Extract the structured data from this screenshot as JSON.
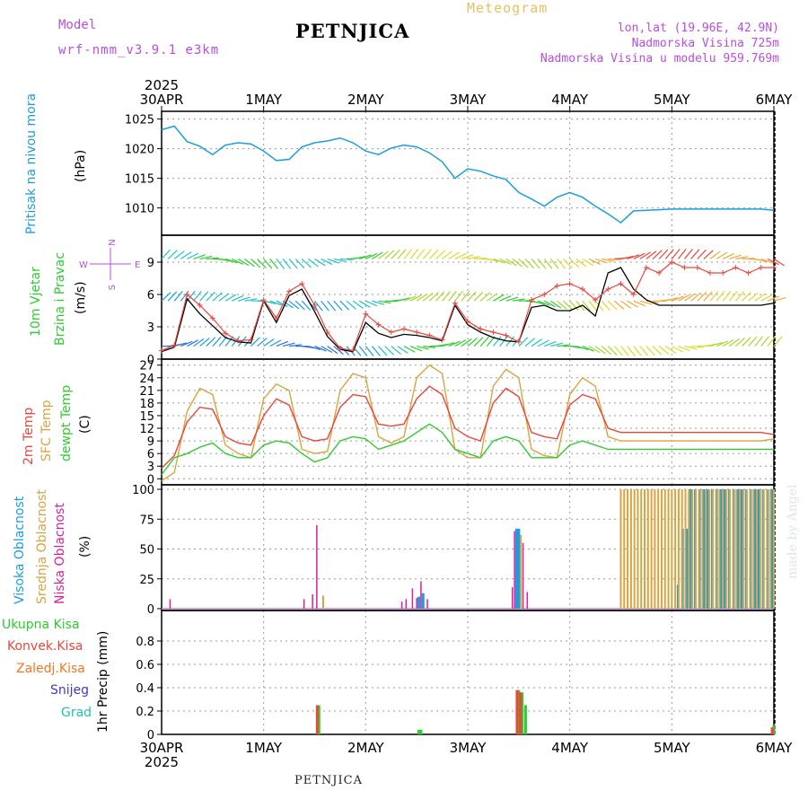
{
  "header": {
    "model_label": "Model",
    "model_name": "wrf-nmm_v3.9.1 e3km",
    "product": "Meteogram",
    "station": "PETNJICA",
    "lonlat": "lon,lat (19.96E, 42.9N)",
    "altitude": "Nadmorska Visina 725m",
    "model_altitude": "Nadmorska Visina u modelu 959.769m",
    "credit": "made by Angel",
    "footer_station": "PETNJICA"
  },
  "colors": {
    "pressure": "#1a9ee0",
    "temp2m": "#e8473c",
    "sfc_temp": "#d9a440",
    "dewpoint": "#2ecc2e",
    "visoka": "#1a9ee0",
    "srednja": "#d9a440",
    "niska": "#d6219c",
    "ukupna": "#2ecc2e",
    "konvek": "#e8473c",
    "zaledj": "#f07820",
    "snijeg": "#3b3bd9",
    "grad": "#1fc2b0",
    "purple": "#b84ee0"
  },
  "time_axis": {
    "year": "2025",
    "labels": [
      "30APR",
      "1MAY",
      "2MAY",
      "3MAY",
      "4MAY",
      "5MAY",
      "6MAY"
    ]
  },
  "compass": {
    "n": "N",
    "s": "S",
    "w": "W",
    "e": "E"
  },
  "chart_data": [
    {
      "type": "line",
      "name": "pressure",
      "title": "Pritisak na nivou mora",
      "ylabel": "(hPa)",
      "ylim": [
        1006,
        1026
      ],
      "yticks": [
        1010,
        1015,
        1020,
        1025
      ],
      "x_hours": [
        0,
        3,
        6,
        9,
        12,
        15,
        18,
        21,
        24,
        27,
        30,
        33,
        36,
        39,
        42,
        45,
        48,
        51,
        54,
        57,
        60,
        63,
        66,
        69,
        72,
        75,
        78,
        81,
        84,
        87,
        90,
        93,
        96,
        99,
        102,
        105,
        108,
        111,
        114,
        117,
        120,
        123,
        126,
        129,
        132,
        135,
        138,
        141,
        144
      ],
      "values": [
        1023.2,
        1023.8,
        1021.2,
        1020.4,
        1019.0,
        1020.6,
        1021.0,
        1020.8,
        1019.6,
        1018.0,
        1018.2,
        1020.3,
        1021.0,
        1021.3,
        1021.8,
        1021.0,
        1019.6,
        1019.0,
        1020.1,
        1020.6,
        1020.3,
        1019.3,
        1017.8,
        1015.0,
        1016.6,
        1016.2,
        1015.4,
        1014.8,
        1012.6,
        1011.5,
        1010.3,
        1011.8,
        1012.6,
        1011.8,
        1010.3,
        1009.0,
        1007.5,
        1009.5,
        1009.6,
        1009.7,
        1009.8,
        1009.8,
        1009.8,
        1009.8,
        1009.8,
        1009.8,
        1009.8,
        1009.8,
        1009.6
      ]
    },
    {
      "type": "line",
      "name": "wind",
      "title": "10m Vjetar Brzina i Pravac",
      "ylabel": "(m/s)",
      "ylim": [
        0,
        11.5
      ],
      "yticks": [
        0,
        3,
        6,
        9
      ],
      "x_hours": [
        0,
        3,
        6,
        9,
        12,
        15,
        18,
        21,
        24,
        27,
        30,
        33,
        36,
        39,
        42,
        45,
        48,
        51,
        54,
        57,
        60,
        63,
        66,
        69,
        72,
        75,
        78,
        81,
        84,
        87,
        90,
        93,
        96,
        99,
        102,
        105,
        108,
        111,
        114,
        117,
        120,
        123,
        126,
        129,
        132,
        135,
        138,
        141,
        144
      ],
      "series": [
        {
          "name": "speed",
          "values": [
            0.8,
            1.3,
            6.0,
            5.0,
            3.8,
            2.4,
            1.7,
            1.8,
            5.5,
            3.8,
            6.3,
            7.0,
            5.0,
            2.5,
            1.0,
            0.8,
            4.2,
            3.2,
            2.5,
            2.8,
            2.5,
            2.2,
            1.8,
            5.2,
            3.5,
            2.8,
            2.5,
            2.2,
            1.6,
            5.5,
            6.0,
            6.8,
            7.0,
            6.5,
            5.5,
            6.5,
            7.0,
            6.0,
            8.5,
            8.0,
            9.0,
            8.5,
            8.5,
            8.0,
            8.0,
            8.5,
            8.0,
            8.5,
            8.5
          ]
        },
        {
          "name": "gust",
          "values": [
            0.7,
            1.1,
            5.6,
            4.2,
            3.1,
            2.0,
            1.6,
            1.5,
            5.4,
            3.4,
            5.9,
            6.5,
            4.4,
            2.1,
            0.9,
            0.7,
            3.4,
            2.4,
            2.0,
            2.3,
            2.2,
            2.0,
            1.7,
            5.0,
            3.2,
            2.5,
            2.0,
            1.7,
            1.6,
            4.8,
            5.0,
            4.5,
            4.5,
            5.0,
            4.0,
            8.0,
            8.5,
            6.5,
            5.5,
            5.0,
            5.0,
            5.0,
            5.0,
            5.0,
            5.0,
            5.0,
            5.0,
            5.0,
            5.2
          ]
        }
      ]
    },
    {
      "type": "line",
      "name": "temperature",
      "title": "2m Temp / SFC Temp / dewpt Temp",
      "ylabel": "(C)",
      "ylim": [
        -1,
        28
      ],
      "yticks": [
        0,
        3,
        6,
        9,
        12,
        15,
        18,
        21,
        24,
        27
      ],
      "x_hours": [
        0,
        3,
        6,
        9,
        12,
        15,
        18,
        21,
        24,
        27,
        30,
        33,
        36,
        39,
        42,
        45,
        48,
        51,
        54,
        57,
        60,
        63,
        66,
        69,
        72,
        75,
        78,
        81,
        84,
        87,
        90,
        93,
        96,
        99,
        102,
        105,
        108,
        111,
        114,
        117,
        120,
        123,
        126,
        129,
        132,
        135,
        138,
        141,
        144
      ],
      "series": [
        {
          "name": "2m Temp",
          "values": [
            2.5,
            5.5,
            13.5,
            17.0,
            16.5,
            10.0,
            8.5,
            8.0,
            15.0,
            19.0,
            17.5,
            10.0,
            9.0,
            9.5,
            17.0,
            20.0,
            19.5,
            13.0,
            12.5,
            13.0,
            19.0,
            22.0,
            20.0,
            12.0,
            10.0,
            9.0,
            18.0,
            21.5,
            19.5,
            11.0,
            10.0,
            9.5,
            17.5,
            20.0,
            19.0,
            12.0,
            11.0,
            11.0,
            11.0,
            11.0,
            11.0,
            11.0,
            11.0,
            11.0,
            11.0,
            11.0,
            11.0,
            11.0,
            10.5
          ]
        },
        {
          "name": "SFC Temp",
          "values": [
            -0.5,
            1.5,
            16.0,
            21.5,
            20.0,
            8.0,
            6.0,
            5.0,
            19.0,
            22.5,
            21.0,
            7.0,
            6.0,
            6.5,
            21.0,
            25.0,
            24.0,
            10.0,
            8.5,
            10.0,
            24.0,
            27.0,
            25.0,
            7.0,
            5.0,
            5.0,
            22.0,
            26.0,
            24.0,
            7.0,
            5.5,
            5.0,
            20.0,
            24.0,
            22.0,
            10.0,
            9.0,
            9.0,
            9.0,
            9.0,
            9.0,
            9.0,
            9.0,
            9.0,
            9.0,
            9.0,
            9.0,
            9.0,
            9.5
          ]
        },
        {
          "name": "dewpt Temp",
          "values": [
            1.0,
            5.0,
            6.0,
            7.5,
            8.5,
            6.0,
            5.0,
            5.0,
            8.0,
            9.0,
            8.5,
            6.0,
            4.0,
            5.0,
            9.0,
            10.0,
            9.5,
            7.0,
            8.0,
            9.0,
            11.0,
            13.0,
            11.0,
            7.0,
            6.0,
            5.0,
            9.0,
            10.0,
            9.0,
            5.0,
            5.0,
            5.0,
            8.0,
            9.0,
            8.0,
            7.0,
            7.0,
            7.0,
            7.0,
            7.0,
            7.0,
            7.0,
            7.0,
            7.0,
            7.0,
            7.0,
            7.0,
            7.0,
            7.0
          ]
        }
      ]
    },
    {
      "type": "bar",
      "name": "cloudiness",
      "title": "Visoka / Srednja / Niska Oblacnost",
      "ylabel": "(%)",
      "ylim": [
        0,
        100
      ],
      "yticks": [
        0,
        25,
        50,
        75,
        100
      ],
      "series": [
        {
          "name": "Visoka Oblacnost",
          "bars": [
            [
              60.5,
              10
            ],
            [
              61.5,
              13
            ],
            [
              83.5,
              67
            ],
            [
              84.0,
              67
            ],
            [
              121.5,
              20
            ],
            [
              122.5,
              67
            ],
            [
              123.5,
              67
            ],
            [
              124.5,
              100
            ],
            [
              125.5,
              100
            ],
            [
              126.5,
              100
            ],
            [
              127.5,
              100
            ],
            [
              128.5,
              100
            ],
            [
              129.5,
              100
            ],
            [
              130.5,
              100
            ],
            [
              131.5,
              100
            ],
            [
              132.5,
              100
            ],
            [
              133.5,
              100
            ],
            [
              134.5,
              100
            ],
            [
              135.5,
              100
            ],
            [
              136.5,
              100
            ],
            [
              137.5,
              100
            ],
            [
              138.5,
              100
            ],
            [
              139.5,
              100
            ],
            [
              140.5,
              100
            ],
            [
              141.5,
              100
            ],
            [
              142.5,
              100
            ],
            [
              143.5,
              100
            ]
          ]
        },
        {
          "name": "Srednja Oblacnost",
          "bars": [
            [
              38.0,
              11
            ],
            [
              84.5,
              62
            ],
            [
              108.0,
              100
            ],
            [
              108.8,
              100
            ],
            [
              109.6,
              100
            ],
            [
              110.4,
              100
            ],
            [
              111.2,
              100
            ],
            [
              112.0,
              100
            ],
            [
              112.8,
              100
            ],
            [
              113.6,
              100
            ],
            [
              114.4,
              100
            ],
            [
              115.2,
              100
            ],
            [
              116.0,
              100
            ],
            [
              116.8,
              100
            ],
            [
              117.6,
              100
            ],
            [
              118.4,
              100
            ],
            [
              119.2,
              100
            ],
            [
              120.0,
              100
            ],
            [
              120.8,
              100
            ],
            [
              121.6,
              100
            ],
            [
              122.4,
              100
            ],
            [
              123.2,
              100
            ],
            [
              124.0,
              100
            ],
            [
              124.8,
              100
            ],
            [
              125.6,
              100
            ],
            [
              126.4,
              100
            ],
            [
              127.2,
              100
            ],
            [
              128.0,
              100
            ],
            [
              128.8,
              100
            ],
            [
              129.6,
              100
            ],
            [
              130.4,
              100
            ],
            [
              131.2,
              100
            ],
            [
              132.0,
              100
            ],
            [
              132.8,
              100
            ],
            [
              133.6,
              100
            ],
            [
              134.4,
              100
            ],
            [
              135.2,
              100
            ],
            [
              136.0,
              100
            ],
            [
              136.8,
              100
            ],
            [
              137.6,
              100
            ],
            [
              138.4,
              100
            ],
            [
              139.2,
              100
            ],
            [
              140.0,
              100
            ],
            [
              140.8,
              100
            ],
            [
              141.6,
              100
            ],
            [
              142.4,
              100
            ],
            [
              143.2,
              100
            ],
            [
              144.0,
              100
            ]
          ]
        },
        {
          "name": "Niska Oblacnost",
          "bars": [
            [
              2.0,
              8
            ],
            [
              33.5,
              8
            ],
            [
              35.5,
              12
            ],
            [
              36.5,
              70
            ],
            [
              56.5,
              6
            ],
            [
              57.5,
              8
            ],
            [
              59.0,
              17
            ],
            [
              60.0,
              9
            ],
            [
              61.0,
              23
            ],
            [
              62.5,
              8
            ],
            [
              82.5,
              18
            ],
            [
              83.0,
              65
            ],
            [
              85.0,
              55
            ],
            [
              86.0,
              14
            ]
          ]
        }
      ]
    },
    {
      "type": "bar",
      "name": "precipitation",
      "title": "Ukupna Kisa / Konvek.Kisa / Zaledj.Kisa / Snijeg / Grad",
      "ylabel": "1hr Precip (mm)",
      "ylim": [
        0,
        1.0
      ],
      "yticks": [
        0,
        0.2,
        0.4,
        0.6,
        0.8
      ],
      "series": [
        {
          "name": "Ukupna Kisa",
          "bars": [
            [
              37.0,
              0.25
            ],
            [
              60.5,
              0.04
            ],
            [
              61.0,
              0.04
            ],
            [
              84.0,
              0.38
            ],
            [
              84.8,
              0.36
            ],
            [
              85.6,
              0.25
            ],
            [
              144.0,
              0.08
            ]
          ]
        },
        {
          "name": "Konvek.Kisa",
          "bars": [
            [
              36.6,
              0.25
            ],
            [
              83.6,
              0.38
            ],
            [
              84.4,
              0.36
            ],
            [
              143.6,
              0.06
            ]
          ]
        }
      ]
    }
  ]
}
